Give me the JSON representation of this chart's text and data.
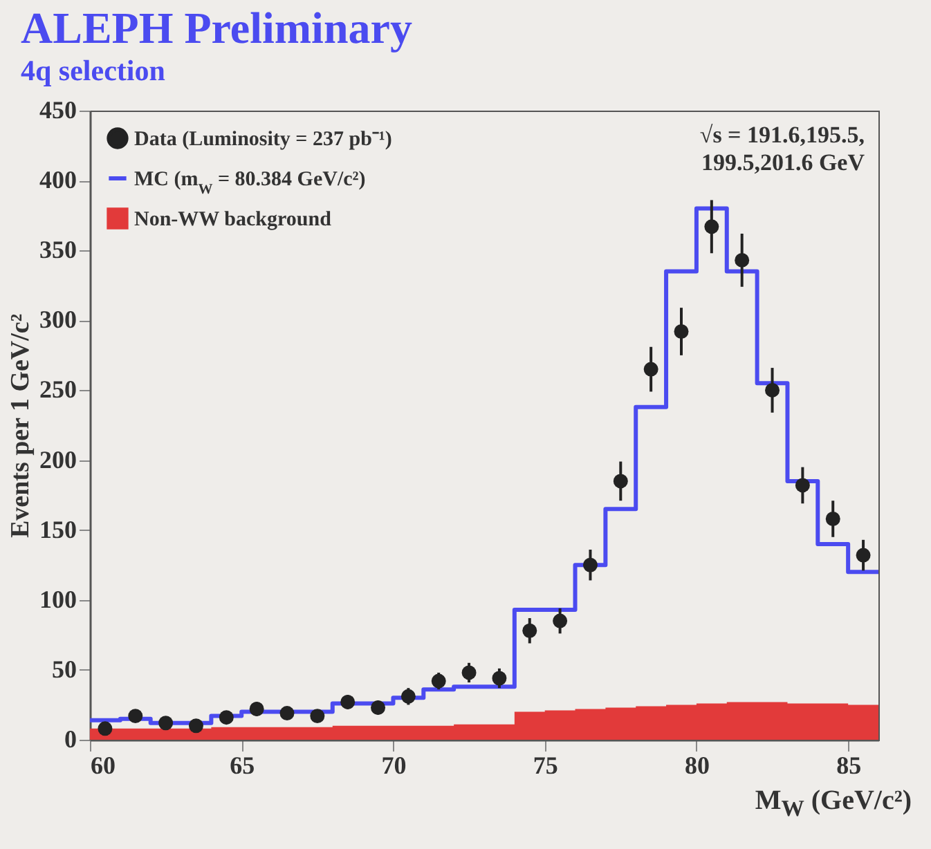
{
  "chart_data": {
    "type": "scatter",
    "title": "ALEPH Preliminary",
    "subtitle": "4q selection",
    "xlabel": "M$_{W}$ (GeV/c²)",
    "ylabel": "Events per 1 GeV/c²",
    "annotations": [
      "√s = 191.6,195.5, 199.5,201.6 GeV"
    ],
    "xlim": [
      60,
      86
    ],
    "xticks": [
      60,
      65,
      70,
      75,
      80,
      85
    ],
    "ylim": [
      0,
      450
    ],
    "yticks": [
      0,
      50,
      100,
      150,
      200,
      250,
      300,
      350,
      400,
      450
    ],
    "legend": "top left",
    "series": [
      {
        "name": "Data (Luminosity = 237 pb⁻¹)",
        "marker": "circle",
        "color": "#222222",
        "x": [
          60.5,
          61.5,
          62.5,
          63.5,
          64.5,
          65.5,
          66.5,
          67.5,
          68.5,
          69.5,
          70.5,
          71.5,
          72.5,
          73.5,
          74.5,
          75.5,
          76.5,
          77.5,
          78.5,
          79.5,
          80.5,
          81.5,
          82.5,
          83.5,
          84.5,
          85.5
        ],
        "values": [
          8,
          17,
          12,
          10,
          16,
          22,
          19,
          17,
          27,
          23,
          31,
          42,
          48,
          44,
          78,
          85,
          125,
          185,
          265,
          292,
          367,
          343,
          250,
          182,
          158,
          132
        ],
        "errors": [
          3,
          4,
          3,
          3,
          4,
          5,
          4,
          4,
          5,
          5,
          6,
          6,
          7,
          7,
          9,
          9,
          11,
          14,
          16,
          17,
          19,
          19,
          16,
          13,
          13,
          11
        ]
      },
      {
        "name": "MC (m$_{W}$ = 80.384 GeV/c²)",
        "type": "step",
        "color": "#4b4bf0",
        "x": [
          60,
          61,
          62,
          63,
          64,
          65,
          66,
          67,
          68,
          69,
          70,
          71,
          72,
          73,
          74,
          75,
          76,
          77,
          78,
          79,
          80,
          81,
          82,
          83,
          84,
          85,
          86
        ],
        "values": [
          14,
          15,
          12,
          12,
          17,
          20,
          20,
          20,
          26,
          26,
          30,
          36,
          38,
          38,
          93,
          93,
          125,
          165,
          238,
          335,
          380,
          335,
          255,
          185,
          140,
          120,
          120
        ]
      },
      {
        "name": "Non-WW background",
        "type": "area",
        "color": "#e23a3a",
        "x": [
          60,
          61,
          62,
          63,
          64,
          65,
          66,
          67,
          68,
          69,
          70,
          71,
          72,
          73,
          74,
          75,
          76,
          77,
          78,
          79,
          80,
          81,
          82,
          83,
          84,
          85,
          86
        ],
        "values": [
          8,
          8,
          8,
          8,
          9,
          9,
          9,
          9,
          10,
          10,
          10,
          10,
          11,
          11,
          20,
          21,
          22,
          23,
          24,
          25,
          26,
          27,
          27,
          26,
          26,
          25,
          25
        ]
      }
    ]
  }
}
